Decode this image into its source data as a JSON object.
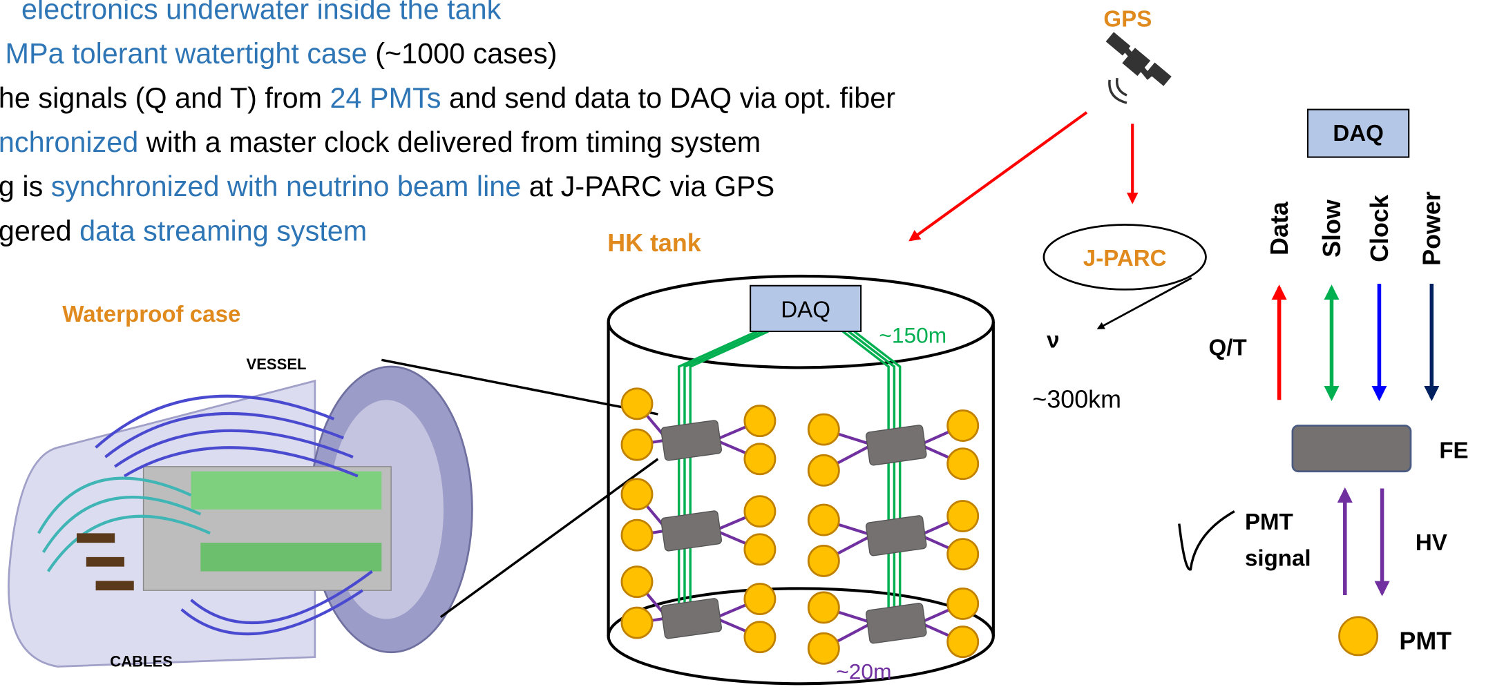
{
  "bullet_points": [
    {
      "segments": [
        {
          "text": "electronics underwater inside the tank",
          "color": "#2e75b6"
        }
      ]
    },
    {
      "segments": [
        {
          "text": "MPa tolerant watertight case",
          "color": "#2e75b6"
        },
        {
          "text": " (~1000 cases)",
          "color": "#000000"
        }
      ]
    },
    {
      "segments": [
        {
          "text": "he signals (Q and T) from ",
          "color": "#000000"
        },
        {
          "text": "24 PMTs",
          "color": "#2e75b6"
        },
        {
          "text": " and send data to DAQ via opt. fiber",
          "color": "#000000"
        }
      ]
    },
    {
      "segments": [
        {
          "text": "nchronized",
          "color": "#2e75b6"
        },
        {
          "text": " with a master clock delivered from timing system",
          "color": "#000000"
        }
      ]
    },
    {
      "segments": [
        {
          "text": "g is ",
          "color": "#000000"
        },
        {
          "text": "synchronized with neutrino beam line",
          "color": "#2e75b6"
        },
        {
          "text": " at J-PARC via GPS",
          "color": "#000000"
        }
      ]
    },
    {
      "segments": [
        {
          "text": "gered ",
          "color": "#000000"
        },
        {
          "text": "data streaming system",
          "color": "#2e75b6"
        }
      ]
    }
  ],
  "satellite": {
    "label": "GPS"
  },
  "case": {
    "label": "Waterproof case",
    "vessel": "VESSEL",
    "cables": "CABLES"
  },
  "tank": {
    "label": "HK tank",
    "daq": "DAQ",
    "cable_length": "~150m",
    "spacing": "~20m"
  },
  "jparc": {
    "label": "J-PARC",
    "neutrino": "ν",
    "distance": "~300km"
  },
  "readout": {
    "daq": "DAQ",
    "signals": [
      "Data",
      "Slow",
      "Clock",
      "Power"
    ],
    "qt": "Q/T",
    "fe": "FE",
    "pmt_signal": [
      "PMT",
      "signal"
    ],
    "hv": "HV",
    "pmt": "PMT"
  }
}
